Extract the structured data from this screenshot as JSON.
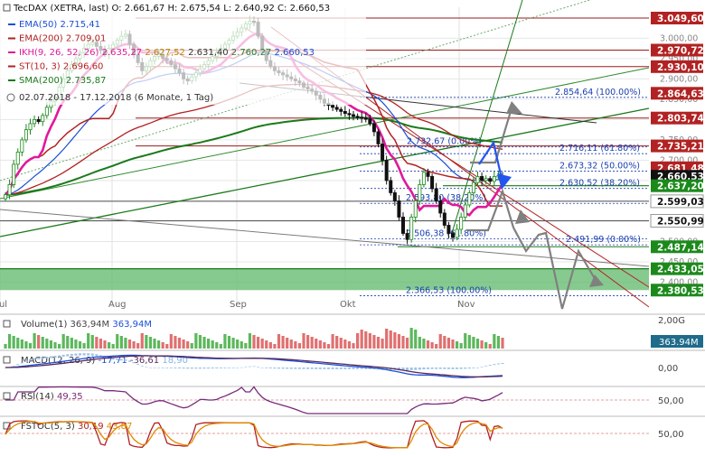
{
  "header": {
    "title": "TecDAX (XETRA, last)",
    "ohlc": "O: 2.661,67  H: 2.675,54  L: 2.640,92  C: 2.660,53"
  },
  "legend": [
    {
      "label": "EMA(50)",
      "values": [
        {
          "t": "2.715,41",
          "c": "#1a4fd6"
        }
      ],
      "color": "#1a4fd6"
    },
    {
      "label": "EMA(200)",
      "values": [
        {
          "t": "2.709,01",
          "c": "#b22222"
        }
      ],
      "color": "#b22222"
    },
    {
      "label": "IKH(9, 26, 52, 26)",
      "values": [
        {
          "t": "2.635,27",
          "c": "#e0199a"
        },
        {
          "t": "2.627,52",
          "c": "#b8860b"
        },
        {
          "t": "2.631,40",
          "c": "#333333"
        },
        {
          "t": "2.760,27",
          "c": "#2e7d32"
        },
        {
          "t": "2.660,53",
          "c": "#1a4fd6"
        }
      ],
      "color": "#e0199a"
    },
    {
      "label": "ST(10, 3)",
      "values": [
        {
          "t": "2.696,60",
          "c": "#b22222"
        }
      ],
      "color": "#b22222"
    },
    {
      "label": "SMA(200)",
      "values": [
        {
          "t": "2.735,87",
          "c": "#1b7a1b"
        }
      ],
      "color": "#1b7a1b"
    }
  ],
  "period": {
    "range": "02.07.2018 - 17.12.2018",
    "detail": "(6 Monate, 1 Tag)"
  },
  "colors": {
    "candle_up": "#1b8a1b",
    "candle_down": "#111111",
    "ema50": "#1a4fd6",
    "ema200": "#b22222",
    "sma200": "#1b7a1b",
    "tenkan": "#e0199a",
    "fib": "#1a3fb0",
    "arrow_gray": "#8a8a8a",
    "arrow_blue": "#2255ee",
    "zone": "#2e9e3e"
  },
  "chart_data": {
    "type": "candlestick",
    "title": "TecDAX (XETRA, last)",
    "ylim": [
      2370,
      3060
    ],
    "price_axis_labels": [
      "3.000,00",
      "2.950,00",
      "2.900,00",
      "2.850,00",
      "2.800,00",
      "2.750,00",
      "2.700,00",
      "2.650,00",
      "2.600,00",
      "2.550,00",
      "2.500,00",
      "2.450,00",
      "2.400,00"
    ],
    "month_labels": [
      "Jul",
      "Aug",
      "Sep",
      "Okt",
      "Nov"
    ],
    "axis_tags": [
      {
        "label": "3.049,60",
        "value": 3049.6,
        "bg": "#b22222",
        "fg": "#ffffff"
      },
      {
        "label": "2.970,72",
        "value": 2970.72,
        "bg": "#b22222",
        "fg": "#ffffff"
      },
      {
        "label": "2.930,10",
        "value": 2930.1,
        "bg": "#b22222",
        "fg": "#ffffff"
      },
      {
        "label": "2.864,63",
        "value": 2864.63,
        "bg": "#b22222",
        "fg": "#ffffff"
      },
      {
        "label": "2.803,74",
        "value": 2803.74,
        "bg": "#b22222",
        "fg": "#ffffff"
      },
      {
        "label": "2.735,21",
        "value": 2735.21,
        "bg": "#b22222",
        "fg": "#ffffff"
      },
      {
        "label": "2.681,48",
        "value": 2681.48,
        "bg": "#b22222",
        "fg": "#ffffff"
      },
      {
        "label": "2.660,53",
        "value": 2660.53,
        "bg": "#111111",
        "fg": "#ffffff"
      },
      {
        "label": "2.637,20",
        "value": 2637.2,
        "bg": "#1b8a1b",
        "fg": "#ffffff"
      },
      {
        "label": "2.599,03",
        "value": 2599.03,
        "bg": "#ffffff",
        "fg": "#111111"
      },
      {
        "label": "2.550,99",
        "value": 2550.99,
        "bg": "#ffffff",
        "fg": "#111111"
      },
      {
        "label": "2.487,14",
        "value": 2487.14,
        "bg": "#1b8a1b",
        "fg": "#ffffff"
      },
      {
        "label": "2.433,05",
        "value": 2433.05,
        "bg": "#1b8a1b",
        "fg": "#ffffff"
      },
      {
        "label": "2.380,53",
        "value": 2380.53,
        "bg": "#1b8a1b",
        "fg": "#ffffff"
      }
    ],
    "fib_labels": [
      {
        "text": "2.854,64 (100.00%)",
        "value": 2854.64
      },
      {
        "text": "2.732,67 (0.00%)",
        "value": 2732.67
      },
      {
        "text": "2.716,11 (61.80%)",
        "value": 2716.11
      },
      {
        "text": "2.673,32 (50.00%)",
        "value": 2673.32
      },
      {
        "text": "2.630,52 (38.20%)",
        "value": 2630.52
      },
      {
        "text": "2.593,80 (38.20%)",
        "value": 2593.8
      },
      {
        "text": "2.506,38 (61.80%)",
        "value": 2506.38
      },
      {
        "text": "2.491,99 (0.00%)",
        "value": 2491.99
      },
      {
        "text": "2.366,53 (100.00%)",
        "value": 2366.53
      }
    ],
    "close_series": [
      2615,
      2640,
      2690,
      2720,
      2750,
      2775,
      2790,
      2800,
      2795,
      2810,
      2830,
      2845,
      2855,
      2880,
      2900,
      2920,
      2935,
      2950,
      2965,
      2975,
      2985,
      2990,
      2980,
      2970,
      2960,
      2975,
      2985,
      2995,
      3005,
      3010,
      2985,
      2960,
      2940,
      2920,
      2930,
      2945,
      2955,
      2960,
      2950,
      2945,
      2935,
      2925,
      2915,
      2900,
      2895,
      2905,
      2915,
      2925,
      2935,
      2945,
      2955,
      2965,
      2975,
      2985,
      2995,
      3005,
      3015,
      3025,
      3035,
      3042,
      3040,
      3005,
      2970,
      2945,
      2930,
      2920,
      2915,
      2910,
      2905,
      2900,
      2895,
      2890,
      2880,
      2875,
      2870,
      2860,
      2850,
      2840,
      2835,
      2830,
      2825,
      2820,
      2815,
      2812,
      2808,
      2806,
      2804,
      2802,
      2790,
      2770,
      2740,
      2700,
      2650,
      2620,
      2600,
      2560,
      2520,
      2505,
      2560,
      2600,
      2640,
      2670,
      2660,
      2630,
      2600,
      2570,
      2540,
      2520,
      2510,
      2530,
      2560,
      2590,
      2620,
      2645,
      2660,
      2650,
      2655,
      2648,
      2660,
      2662,
      2660
    ]
  },
  "volume": {
    "label": "Volume(1)",
    "value": "363,94M",
    "value2": "363,94M",
    "axis_label": "2,00G",
    "tag": "363.94M"
  },
  "macd": {
    "label": "MACD(12, 26, 9)",
    "values": [
      {
        "t": "-17,71",
        "c": "#1a4fd6"
      },
      {
        "t": "-36,61",
        "c": "#5a2a5a"
      },
      {
        "t": "18,90",
        "c": "#8ab4e0"
      }
    ],
    "axis_label": "0,00"
  },
  "rsi": {
    "label": "RSI(14)",
    "value": "49,35",
    "axis_label": "50,00"
  },
  "fstoc": {
    "label": "FSTOC(5, 3)",
    "values": [
      {
        "t": "30,19",
        "c": "#b22222"
      },
      {
        "t": "43,87",
        "c": "#e08a00"
      }
    ],
    "axis_label": "50,00"
  }
}
